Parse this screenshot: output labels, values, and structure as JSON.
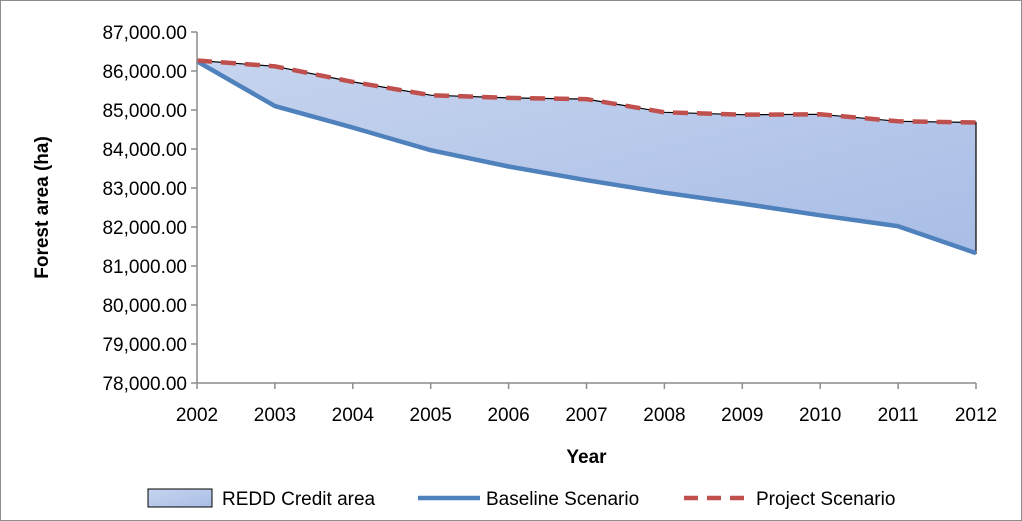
{
  "chart_data": {
    "type": "area",
    "title": "",
    "xlabel": "Year",
    "ylabel": "Forest area (ha)",
    "x": [
      2002,
      2003,
      2004,
      2005,
      2006,
      2007,
      2008,
      2009,
      2010,
      2011,
      2012
    ],
    "x_tick_labels": [
      "2002",
      "2003",
      "2004",
      "2005",
      "2006",
      "2007",
      "2008",
      "2009",
      "2010",
      "2011",
      "2012"
    ],
    "ylim": [
      78000,
      87000
    ],
    "y_ticks": [
      78000,
      79000,
      80000,
      81000,
      82000,
      83000,
      84000,
      85000,
      86000,
      87000
    ],
    "y_tick_labels": [
      "78,000.00",
      "79,000.00",
      "80,000.00",
      "81,000.00",
      "82,000.00",
      "83,000.00",
      "84,000.00",
      "85,000.00",
      "86,000.00",
      "87,000.00"
    ],
    "grid": false,
    "legend_position": "bottom",
    "series": [
      {
        "name": "REDD Credit area",
        "kind": "area-between",
        "color": "#c6d4ee",
        "color_end": "#a9bde6"
      },
      {
        "name": "Baseline Scenario",
        "kind": "line",
        "style": "solid",
        "color": "#4f81bd",
        "values": [
          86250,
          85100,
          84550,
          83970,
          83550,
          83200,
          82880,
          82600,
          82300,
          82020,
          81330
        ]
      },
      {
        "name": "Project Scenario",
        "kind": "line",
        "style": "dashed",
        "color": "#c0504d",
        "values": [
          86270,
          86120,
          85720,
          85380,
          85310,
          85280,
          84940,
          84880,
          84890,
          84710,
          84680
        ]
      }
    ]
  }
}
